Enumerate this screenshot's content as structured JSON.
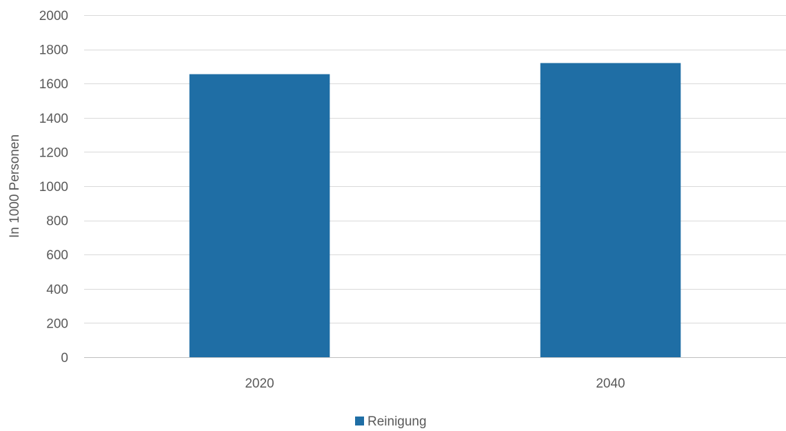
{
  "chart_data": {
    "type": "bar",
    "title": "",
    "xlabel": "",
    "ylabel": "In 1000 Personen",
    "categories": [
      "2020",
      "2040"
    ],
    "series": [
      {
        "name": "Reinigung",
        "values": [
          1655,
          1720
        ],
        "color": "#1f6ea5"
      }
    ],
    "ylim": [
      0,
      2000
    ],
    "yticks": [
      0,
      200,
      400,
      600,
      800,
      1000,
      1200,
      1400,
      1600,
      1800,
      2000
    ],
    "grid": true,
    "legend_position": "bottom"
  }
}
